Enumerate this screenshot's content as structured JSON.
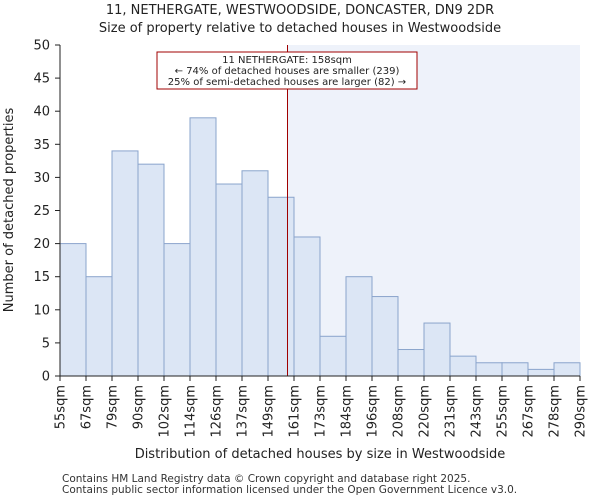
{
  "chart_data": {
    "type": "bar",
    "title": "11, NETHERGATE, WESTWOODSIDE, DONCASTER, DN9 2DR",
    "subtitle": "Size of property relative to detached houses in Westwoodside",
    "xlabel": "Distribution of detached houses by size in Westwoodside",
    "ylabel": "Number of detached properties",
    "x_tick_labels": [
      "55sqm",
      "67sqm",
      "79sqm",
      "90sqm",
      "102sqm",
      "114sqm",
      "126sqm",
      "137sqm",
      "149sqm",
      "161sqm",
      "173sqm",
      "184sqm",
      "196sqm",
      "208sqm",
      "220sqm",
      "231sqm",
      "243sqm",
      "255sqm",
      "267sqm",
      "278sqm",
      "290sqm"
    ],
    "values": [
      20,
      15,
      34,
      32,
      20,
      39,
      29,
      31,
      27,
      21,
      6,
      15,
      12,
      4,
      8,
      3,
      2,
      2,
      1,
      2
    ],
    "ylim": [
      0,
      50
    ],
    "y_ticks": [
      0,
      5,
      10,
      15,
      20,
      25,
      30,
      35,
      40,
      45,
      50
    ],
    "grid": false,
    "marker": {
      "value_sqm": 158,
      "bin_fraction": 8.75
    },
    "annotation": {
      "lines": [
        "11 NETHERGATE: 158sqm",
        "← 74% of detached houses are smaller (239)",
        "25% of semi-detached houses are larger (82) →"
      ]
    },
    "colors": {
      "bar_fill": "#dce6f5",
      "bar_stroke": "#8aa4cc",
      "marker": "#a00000",
      "right_shade": "#eef2fa",
      "axis": "#222222"
    }
  },
  "footer": {
    "line1": "Contains HM Land Registry data © Crown copyright and database right 2025.",
    "line2": "Contains public sector information licensed under the Open Government Licence v3.0."
  }
}
